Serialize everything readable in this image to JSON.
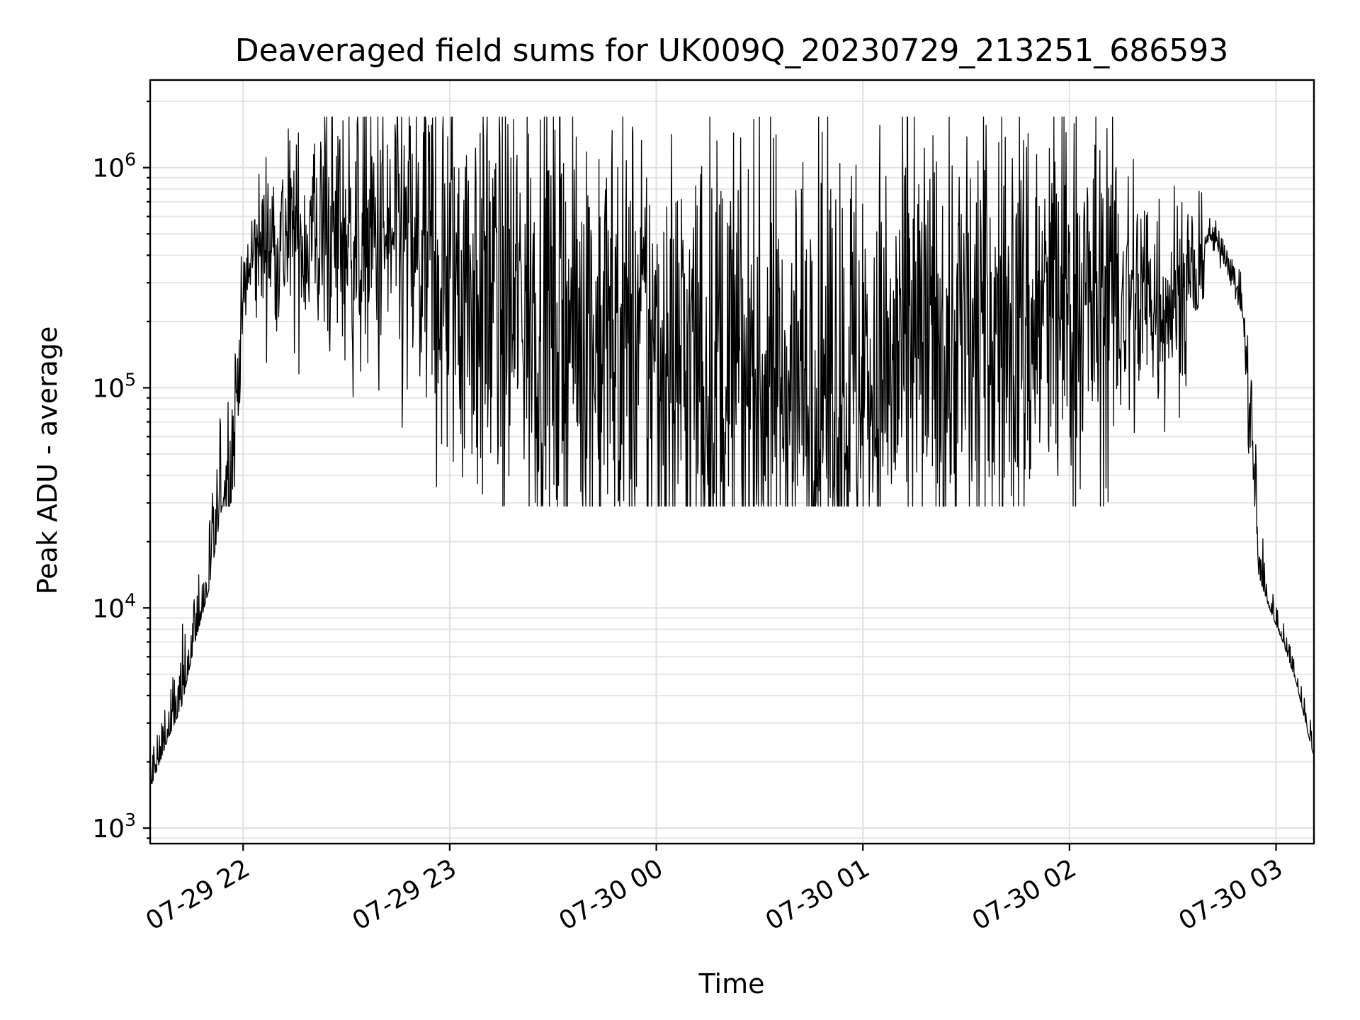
{
  "chart_data": {
    "type": "line",
    "title": "Deaveraged field sums for UK009Q_20230729_213251_686593",
    "xlabel": "Time",
    "ylabel": "Peak ADU - average",
    "yscale": "log",
    "ylim": [
      850,
      2500000
    ],
    "xlim": [
      "2023-07-29 21:33",
      "2023-07-30 03:11"
    ],
    "grid": true,
    "x_ticks": [
      "07-29 22",
      "07-29 23",
      "07-30 00",
      "07-30 01",
      "07-30 02",
      "07-30 03"
    ],
    "y_ticks": [
      {
        "value": 1000,
        "base": "10",
        "exp": "3"
      },
      {
        "value": 10000,
        "base": "10",
        "exp": "4"
      },
      {
        "value": 100000,
        "base": "10",
        "exp": "5"
      },
      {
        "value": 1000000,
        "base": "10",
        "exp": "6"
      }
    ],
    "series": [
      {
        "color": "#000000",
        "envelope": [
          {
            "t": "2023-07-29 21:33",
            "y": 1500
          },
          {
            "t": "2023-07-29 21:38",
            "y": 2500
          },
          {
            "t": "2023-07-29 21:42",
            "y": 3500
          },
          {
            "t": "2023-07-29 21:46",
            "y": 7000
          },
          {
            "t": "2023-07-29 21:50",
            "y": 12000
          },
          {
            "t": "2023-07-29 21:54",
            "y": 30000
          },
          {
            "t": "2023-07-29 21:57",
            "y": 55000
          },
          {
            "t": "2023-07-29 22:00",
            "y": 250000
          },
          {
            "t": "2023-07-29 22:02",
            "y": 350000
          },
          {
            "t": "2023-07-29 22:05",
            "y": 450000
          },
          {
            "t": "2023-07-29 22:10",
            "y": 470000
          },
          {
            "t": "2023-07-29 22:30",
            "y": 480000
          },
          {
            "t": "2023-07-29 22:45",
            "y": 430000
          },
          {
            "t": "2023-07-29 23:00",
            "y": 320000
          },
          {
            "t": "2023-07-29 23:30",
            "y": 200000
          },
          {
            "t": "2023-07-30 00:00",
            "y": 140000
          },
          {
            "t": "2023-07-30 00:30",
            "y": 100000
          },
          {
            "t": "2023-07-30 01:00",
            "y": 110000
          },
          {
            "t": "2023-07-30 01:30",
            "y": 160000
          },
          {
            "t": "2023-07-30 02:00",
            "y": 230000
          },
          {
            "t": "2023-07-30 02:30",
            "y": 260000
          },
          {
            "t": "2023-07-30 02:37",
            "y": 300000
          },
          {
            "t": "2023-07-30 02:40",
            "y": 500000
          },
          {
            "t": "2023-07-30 02:45",
            "y": 420000
          },
          {
            "t": "2023-07-30 02:50",
            "y": 250000
          },
          {
            "t": "2023-07-30 02:53",
            "y": 60000
          },
          {
            "t": "2023-07-30 02:55",
            "y": 14000
          },
          {
            "t": "2023-07-30 02:58",
            "y": 10000
          },
          {
            "t": "2023-07-30 03:02",
            "y": 7000
          },
          {
            "t": "2023-07-30 03:06",
            "y": 4500
          },
          {
            "t": "2023-07-30 03:09",
            "y": 2800
          },
          {
            "t": "2023-07-30 03:11",
            "y": 2100
          }
        ],
        "approx_peak": 1700000,
        "approx_trough": 29000,
        "noise": [
          {
            "t": "2023-07-29 21:33",
            "dex": 0.12
          },
          {
            "t": "2023-07-29 21:55",
            "dex": 0.2
          },
          {
            "t": "2023-07-29 22:00",
            "dex": 0.12
          },
          {
            "t": "2023-07-29 22:05",
            "dex": 0.18
          },
          {
            "t": "2023-07-29 22:30",
            "dex": 0.3
          },
          {
            "t": "2023-07-29 23:00",
            "dex": 0.5
          },
          {
            "t": "2023-07-30 00:00",
            "dex": 0.55
          },
          {
            "t": "2023-07-30 01:00",
            "dex": 0.55
          },
          {
            "t": "2023-07-30 02:00",
            "dex": 0.5
          },
          {
            "t": "2023-07-30 02:30",
            "dex": 0.25
          },
          {
            "t": "2023-07-30 02:37",
            "dex": 0.2
          },
          {
            "t": "2023-07-30 02:40",
            "dex": 0.04
          },
          {
            "t": "2023-07-30 02:50",
            "dex": 0.04
          },
          {
            "t": "2023-07-30 02:53",
            "dex": 0.2
          },
          {
            "t": "2023-07-30 02:58",
            "dex": 0.06
          },
          {
            "t": "2023-07-30 03:11",
            "dex": 0.06
          }
        ]
      }
    ]
  }
}
